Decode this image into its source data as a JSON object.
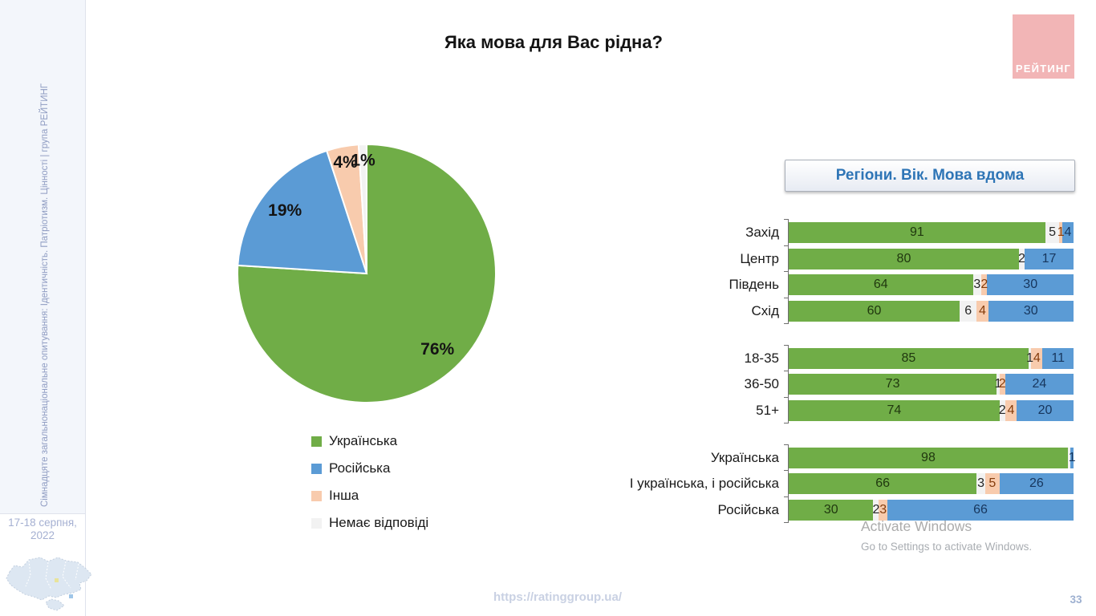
{
  "header": {
    "title": "Яка мова для Вас рідна?"
  },
  "logo": {
    "text": "РЕЙТИНГ",
    "bg_color": "#F2B5B6"
  },
  "sidebar": {
    "vertical_text": "Сімнадцяте загальнонаціональне опитування: Ідентичність. Патріотизм. Цінності | група РЕЙТИНГ",
    "date_line1": "17-18 серпня,",
    "date_line2": "2022"
  },
  "panel": {
    "title": "Регіони. Вік. Мова вдома"
  },
  "legend": [
    {
      "label": "Українська",
      "color": "#70AD47"
    },
    {
      "label": "Російська",
      "color": "#5B9BD5"
    },
    {
      "label": "Інша",
      "color": "#F8CBAD"
    },
    {
      "label": "Немає відповіді",
      "color": "#F2F2F2"
    }
  ],
  "colors": {
    "green": "#70AD47",
    "blue": "#5B9BD5",
    "peach": "#F8CBAD",
    "no_answer": "#F2F2F2",
    "panel_title_text": "#2E75B6",
    "brand_pink": "#F2B5B6"
  },
  "chart_data": [
    {
      "type": "pie",
      "title": "Яка мова для Вас рідна?",
      "start_at_12_oclock_clockwise": true,
      "slices": [
        {
          "label": "Українська",
          "value": 76,
          "color": "#70AD47"
        },
        {
          "label": "Російська",
          "value": 19,
          "color": "#5B9BD5"
        },
        {
          "label": "Інша",
          "value": 4,
          "color": "#F8CBAD"
        },
        {
          "label": "Немає відповіді",
          "value": 1,
          "color": "#F2F2F2"
        }
      ],
      "legend_position": "bottom-left"
    },
    {
      "type": "bar",
      "subtype": "horizontal-stacked-100",
      "title": "Регіони. Вік. Мова вдома",
      "xlim": [
        0,
        100
      ],
      "grid": false,
      "series": [
        {
          "name": "Українська",
          "color": "#70AD47",
          "label_color": "#20380f"
        },
        {
          "name": "Немає відповіді",
          "color": "#F2F2F2",
          "label_color": "#262626"
        },
        {
          "name": "Інша",
          "color": "#F8CBAD",
          "label_color": "#843C0C"
        },
        {
          "name": "Російська",
          "color": "#5B9BD5",
          "label_color": "#17365D"
        }
      ],
      "groups": [
        {
          "name": "regions",
          "rows": [
            {
              "label": "Захід",
              "segments": [
                [
                  "Українська",
                  91
                ],
                [
                  "Немає відповіді",
                  5
                ],
                [
                  "Інша",
                  1
                ],
                [
                  "Російська",
                  4
                ]
              ]
            },
            {
              "label": "Центр",
              "segments": [
                [
                  "Українська",
                  80
                ],
                [
                  "Немає відповіді",
                  2
                ],
                [
                  "Російська",
                  17
                ]
              ]
            },
            {
              "label": "Південь",
              "segments": [
                [
                  "Українська",
                  64
                ],
                [
                  "Немає відповіді",
                  3
                ],
                [
                  "Інша",
                  2
                ],
                [
                  "Російська",
                  30
                ]
              ]
            },
            {
              "label": "Схід",
              "segments": [
                [
                  "Українська",
                  60
                ],
                [
                  "Немає відповіді",
                  6
                ],
                [
                  "Інша",
                  4
                ],
                [
                  "Російська",
                  30
                ]
              ]
            }
          ]
        },
        {
          "name": "age",
          "rows": [
            {
              "label": "18-35",
              "segments": [
                [
                  "Українська",
                  85
                ],
                [
                  "Немає відповіді",
                  1
                ],
                [
                  "Інша",
                  4
                ],
                [
                  "Російська",
                  11
                ]
              ]
            },
            {
              "label": "36-50",
              "segments": [
                [
                  "Українська",
                  73
                ],
                [
                  "Немає відповіді",
                  1
                ],
                [
                  "Інша",
                  2
                ],
                [
                  "Російська",
                  24
                ]
              ]
            },
            {
              "label": "51+",
              "segments": [
                [
                  "Українська",
                  74
                ],
                [
                  "Немає відповіді",
                  2
                ],
                [
                  "Інша",
                  4
                ],
                [
                  "Російська",
                  20
                ]
              ]
            }
          ]
        },
        {
          "name": "language-at-home",
          "rows": [
            {
              "label": "Українська",
              "segments": [
                [
                  "Українська",
                  98
                ],
                [
                  "Немає відповіді",
                  1,
                  false
                ],
                [
                  "Російська",
                  1
                ]
              ]
            },
            {
              "label": "І українська, і російська",
              "segments": [
                [
                  "Українська",
                  66
                ],
                [
                  "Немає відповіді",
                  3
                ],
                [
                  "Інша",
                  5
                ],
                [
                  "Російська",
                  26
                ]
              ]
            },
            {
              "label": "Російська",
              "segments": [
                [
                  "Українська",
                  30
                ],
                [
                  "Немає відповіді",
                  2
                ],
                [
                  "Інша",
                  3
                ],
                [
                  "Російська",
                  66
                ]
              ]
            }
          ]
        }
      ]
    }
  ],
  "watermark": {
    "line1": "Activate Windows",
    "line2": "Go to Settings to activate Windows."
  },
  "footer": {
    "url": "https://ratinggroup.ua/",
    "page": "33"
  }
}
